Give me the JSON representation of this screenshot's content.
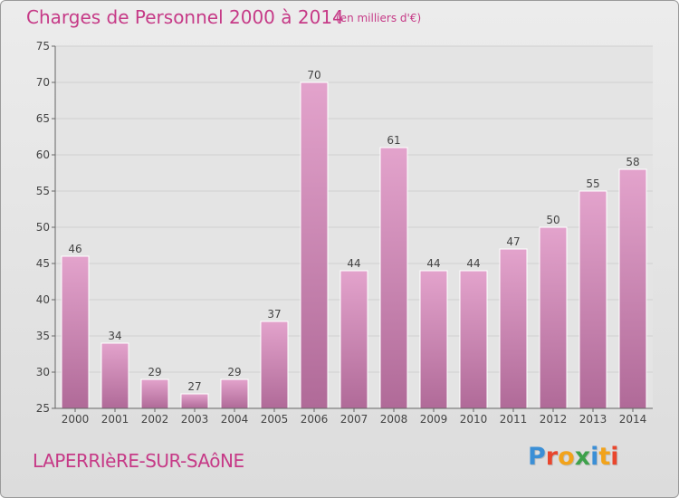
{
  "header": {
    "title": "Charges de Personnel 2000 à 2014",
    "subtitle": "(en milliers d'€)"
  },
  "footer": {
    "commune": "LAPERRIèRE-SUR-SAôNE",
    "logo_text": "Proxiti",
    "logo_colors": [
      "#3b8fd6",
      "#e9462d",
      "#f2a31b",
      "#3ea14b",
      "#3b8fd6",
      "#f2a31b",
      "#e9462d"
    ]
  },
  "chart_data": {
    "type": "bar",
    "categories": [
      "2000",
      "2001",
      "2002",
      "2003",
      "2004",
      "2005",
      "2006",
      "2007",
      "2008",
      "2009",
      "2010",
      "2011",
      "2012",
      "2013",
      "2014"
    ],
    "values": [
      46,
      34,
      29,
      27,
      29,
      37,
      70,
      44,
      61,
      44,
      44,
      47,
      50,
      55,
      58
    ],
    "ylim": [
      25,
      75
    ],
    "yticks": [
      25,
      30,
      35,
      40,
      45,
      50,
      55,
      60,
      65,
      70,
      75
    ],
    "grid": true,
    "bar_color_top": "#e3a3cc",
    "bar_color_bottom": "#b06a98"
  }
}
